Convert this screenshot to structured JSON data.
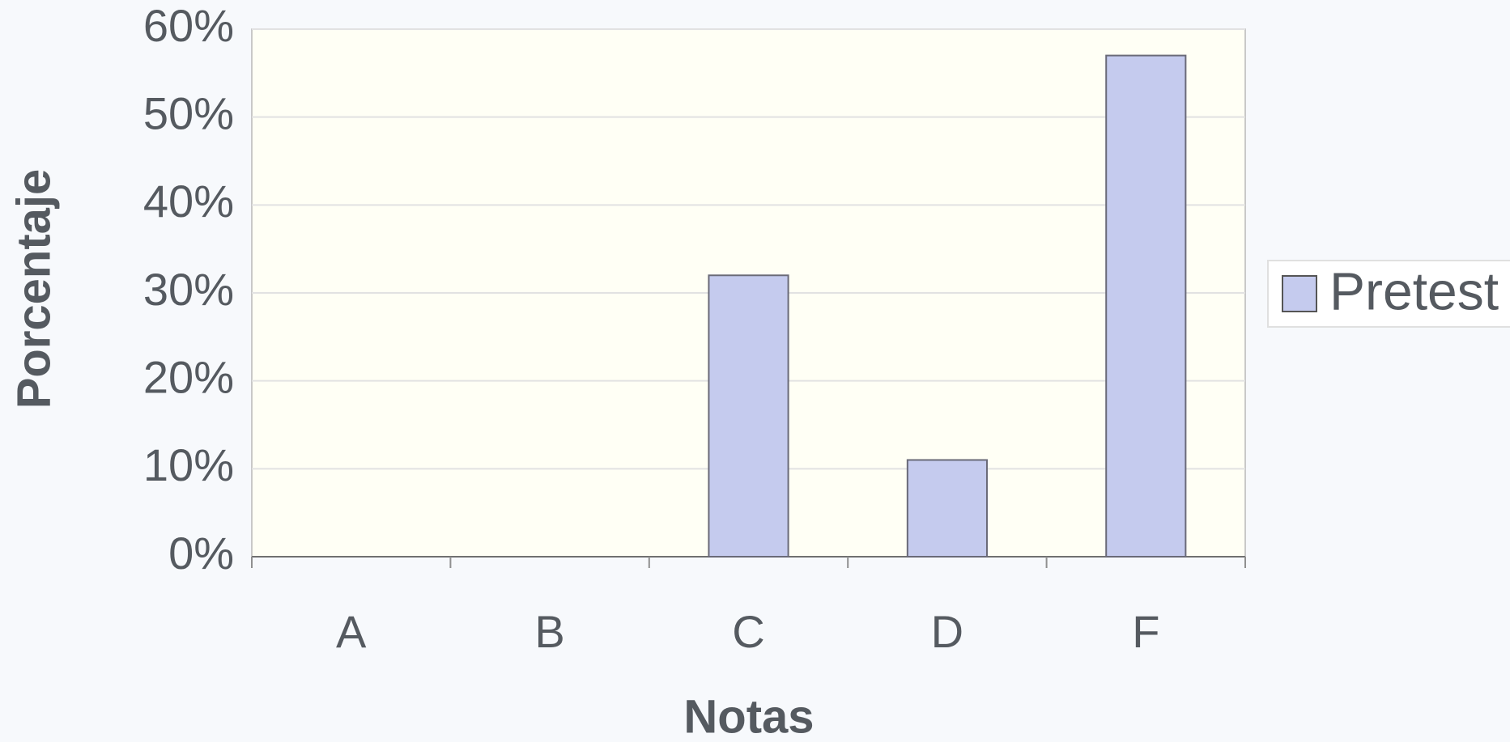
{
  "chart_data": {
    "type": "bar",
    "x_label": "Notas",
    "y_label": "Porcentaje",
    "categories": [
      "A",
      "B",
      "C",
      "D",
      "F"
    ],
    "series": [
      {
        "name": "Pretest",
        "color": "#c5cbee",
        "values": [
          0,
          0,
          32,
          11,
          57
        ]
      }
    ],
    "ylim": [
      0,
      60
    ],
    "yticks": [
      {
        "value": 0,
        "label": "0%"
      },
      {
        "value": 10,
        "label": "10%"
      },
      {
        "value": 20,
        "label": "20%"
      },
      {
        "value": 30,
        "label": "30%"
      },
      {
        "value": 40,
        "label": "40%"
      },
      {
        "value": 50,
        "label": "50%"
      },
      {
        "value": 60,
        "label": "60%"
      }
    ],
    "grid": true,
    "legend": "right"
  }
}
